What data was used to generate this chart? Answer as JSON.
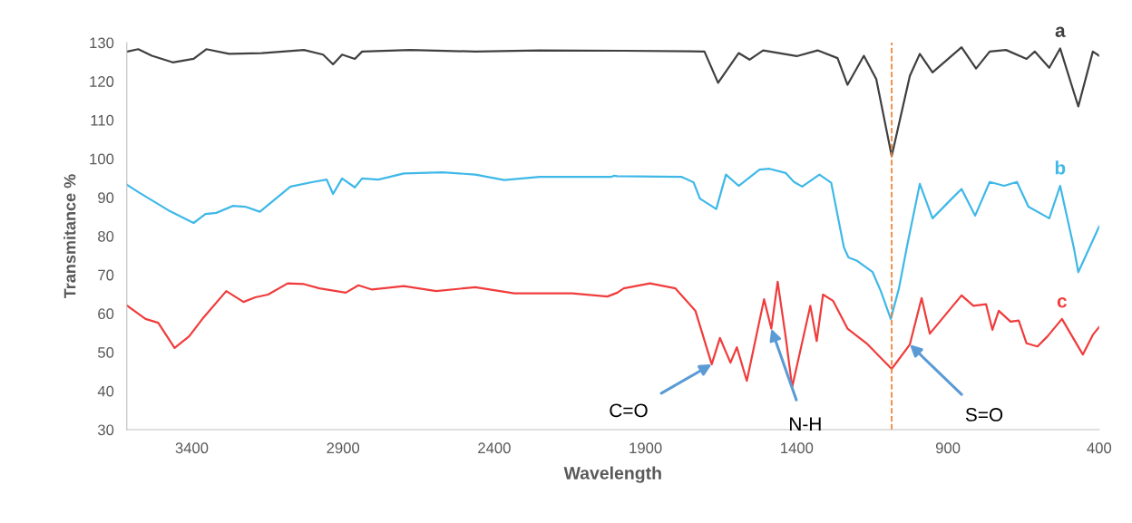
{
  "chart_data": {
    "type": "line",
    "xlabel": "Wavelength",
    "ylabel": "Transmitance %",
    "xlim": [
      3615,
      400
    ],
    "xticks": [
      3400,
      2900,
      2400,
      1900,
      1400,
      900,
      400
    ],
    "ylim": [
      30,
      130
    ],
    "yticks": [
      30,
      40,
      50,
      60,
      70,
      80,
      90,
      100,
      110,
      120,
      130
    ],
    "grid": false,
    "legend": false,
    "line_style": "solid",
    "marker": "none",
    "ref_lines": [
      {
        "axis": "x",
        "value": 1086,
        "color": "#ed7d31",
        "line_style": "dashed"
      }
    ],
    "annotations": [
      {
        "text": "C=O",
        "x": 1681,
        "y": 46.9
      },
      {
        "text": "N-H",
        "x": 1484,
        "y": 56.1
      },
      {
        "text": "S=O",
        "x": 1026,
        "y": 52
      }
    ],
    "series": [
      {
        "name": "a",
        "color": "#404040",
        "x": [
          3613,
          3577,
          3532,
          3463,
          3394,
          3352,
          3277,
          3169,
          3029,
          2966,
          2933,
          2903,
          2861,
          2837,
          2678,
          2463,
          2250,
          1972,
          1705,
          1660,
          1592,
          1556,
          1511,
          1400,
          1331,
          1265,
          1232,
          1178,
          1137,
          1086,
          1026,
          993,
          951,
          855,
          807,
          762,
          708,
          640,
          613,
          565,
          529,
          469,
          421,
          400
        ],
        "values": [
          127.7,
          128.3,
          126.6,
          124.9,
          125.8,
          128.3,
          127.1,
          127.3,
          128.1,
          126.9,
          124.4,
          126.9,
          125.8,
          127.7,
          128.1,
          127.7,
          128,
          127.9,
          127.7,
          119.6,
          127.3,
          125.6,
          128,
          126.5,
          128,
          126,
          119.1,
          126.6,
          120.6,
          100.7,
          121.4,
          127.1,
          122.3,
          128.8,
          123.3,
          127.7,
          128.1,
          125.8,
          127.7,
          123.5,
          128.5,
          113.5,
          127.7,
          126.6
        ]
      },
      {
        "name": "b",
        "color": "#3fb8e8",
        "x": [
          3613,
          3577,
          3478,
          3394,
          3355,
          3319,
          3265,
          3223,
          3175,
          3074,
          2999,
          2954,
          2933,
          2903,
          2861,
          2837,
          2783,
          2699,
          2571,
          2463,
          2367,
          2250,
          2014,
          2005,
          1993,
          1780,
          1741,
          1720,
          1666,
          1634,
          1592,
          1523,
          1490,
          1436,
          1409,
          1382,
          1325,
          1286,
          1244,
          1229,
          1202,
          1149,
          1122,
          1089,
          1062,
          1035,
          993,
          951,
          882,
          855,
          810,
          762,
          714,
          672,
          634,
          565,
          529,
          484,
          469,
          400
        ],
        "values": [
          93.2,
          91.4,
          86.7,
          83.4,
          85.7,
          86,
          87.8,
          87.6,
          86.3,
          92.8,
          94,
          94.6,
          90.9,
          94.9,
          92.6,
          94.9,
          94.6,
          96.2,
          96.5,
          95.9,
          94.5,
          95.3,
          95.3,
          95.6,
          95.5,
          95.3,
          93.9,
          89.7,
          87,
          95.9,
          93,
          97.2,
          97.4,
          96.3,
          94,
          92.8,
          95.9,
          93.8,
          77.1,
          74.5,
          73.7,
          70.7,
          65.8,
          58.6,
          66.5,
          77.5,
          93.5,
          84.6,
          90.1,
          92.2,
          85.3,
          94,
          93,
          94,
          87.6,
          84.6,
          93,
          77.1,
          70.7,
          82.5
        ]
      },
      {
        "name": "c",
        "color": "#f03c3c",
        "x": [
          3613,
          3553,
          3511,
          3457,
          3409,
          3361,
          3286,
          3229,
          3190,
          3148,
          3083,
          3029,
          2978,
          2891,
          2849,
          2804,
          2699,
          2592,
          2463,
          2334,
          2143,
          2026,
          1993,
          1972,
          1885,
          1801,
          1735,
          1681,
          1654,
          1619,
          1598,
          1565,
          1508,
          1484,
          1463,
          1436,
          1415,
          1355,
          1334,
          1313,
          1280,
          1232,
          1169,
          1086,
          1026,
          987,
          960,
          924,
          855,
          816,
          774,
          753,
          732,
          693,
          666,
          640,
          604,
          571,
          523,
          454,
          421,
          400
        ],
        "values": [
          62,
          58.6,
          57.6,
          51.1,
          54.1,
          59,
          65.8,
          63,
          64.2,
          64.9,
          67.8,
          67.6,
          66.5,
          65.4,
          67.3,
          66.2,
          67.1,
          65.8,
          66.8,
          65.2,
          65.2,
          64.4,
          65.4,
          66.5,
          67.8,
          66.5,
          60.7,
          46.9,
          53.7,
          47.3,
          51.3,
          42.6,
          63.7,
          56.1,
          68.2,
          53.7,
          41,
          62,
          52.9,
          64.9,
          63.3,
          56.1,
          52.3,
          45.7,
          52,
          64,
          54.8,
          58.2,
          64.7,
          62,
          62.4,
          55.8,
          60.7,
          57.9,
          58.2,
          52.3,
          51.5,
          54.1,
          58.6,
          49.4,
          54.5,
          56.5
        ]
      }
    ]
  }
}
